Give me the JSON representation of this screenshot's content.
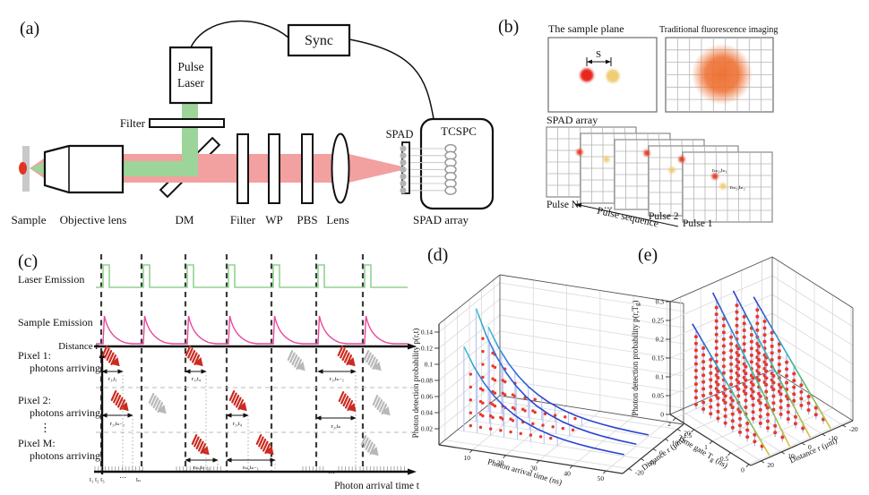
{
  "colors": {
    "excitation_green": "#9dd49a",
    "emission_red": "#f2a0a0",
    "sample_spot_red": "#e23324",
    "dot_red": "#e23c28",
    "dot_yellow": "#f0cc74",
    "blob_orange": "#ed6c2c",
    "laser_trace_green": "#8fd48f",
    "emission_trace_pink": "#e8489c",
    "photon_red": "#cb2b20",
    "photon_gray": "#b8b8b8"
  },
  "panel_a": {
    "label": "(a)",
    "sync": "Sync",
    "pulse_laser_line1": "Pulse",
    "pulse_laser_line2": "Laser",
    "filter_top": "Filter",
    "sample": "Sample",
    "objective_lens": "Objective lens",
    "dm": "DM",
    "filter": "Filter",
    "wp": "WP",
    "pbs": "PBS",
    "lens": "Lens",
    "spad": "SPAD",
    "tcspc": "TCSPC",
    "spad_array": "SPAD array"
  },
  "panel_b": {
    "label": "(b)",
    "sample_plane_title": "The sample plane",
    "traditional_title": "Traditional fluorescence imaging",
    "separation": "S",
    "spad_array": "SPAD array",
    "pulse_n": "Pulse N",
    "ellipsis": "...",
    "pulse_2": "Pulse 2",
    "pulse_1": "Pulse 1",
    "pulse_sequence": "Pulse sequence",
    "photon1_label": "rₘ₁,tₙ₁",
    "photon2_label": "rₘ₂,tₙ₂"
  },
  "panel_c": {
    "label": "(c)",
    "row_laser": "Laser Emission",
    "row_sample": "Sample Emission",
    "axis_distance": "Distance r",
    "pixel1": "Pixel 1:",
    "pixel2": "Pixel 2:",
    "pixelM": "Pixel M:",
    "arriving1": "photons arriving",
    "arriving2": "photons arriving",
    "arrivingM": "photons arriving",
    "vdots": "⋮",
    "axis_time": "Photon arrival time t",
    "t_ticks": "t₁ t₂ t₃",
    "t_dots": "⋯",
    "t_n": "tₙ",
    "comb_dots": "⋯",
    "arrows": {
      "a1": "r₁,t₁",
      "a2": "r₁,t₄",
      "a3": "r₁,tₙ₋₁",
      "b1": "r₂,tₙ₋₂",
      "b2": "r₂,t₄",
      "b3": "r₂,tₙ",
      "m1": "rₘ,tₙ₋₃",
      "m2": "rₘ,tₙ₋₁"
    }
  },
  "panel_d": {
    "label": "(d)"
  },
  "panel_e": {
    "label": "(e)",
    "zlabel_pre": "Photon detection probability p(r,T",
    "zlabel_sub": "g",
    "zlabel_post": ")",
    "xlabel_pre": "Time gate T",
    "xlabel_sub": "g",
    "xlabel_post": " (ns)"
  },
  "chart_data": [
    {
      "id": "panel_d",
      "type": "line",
      "projection": "3d",
      "title": "",
      "zlabel": "Photon detection probability p(r,t)",
      "xlabel": "Photon arrival time (ns)",
      "ylabel": "Distance r (μm)",
      "xticks": [
        10,
        20,
        30,
        40,
        50
      ],
      "yticks": [
        -20,
        -10,
        0,
        10,
        20
      ],
      "zticks": [
        0.02,
        0.04,
        0.06,
        0.08,
        0.1,
        0.12,
        0.14
      ],
      "xlim": [
        0,
        55
      ],
      "ylim": [
        -25,
        25
      ],
      "zlim": [
        0,
        0.15
      ],
      "grid": true,
      "t": [
        2,
        5,
        8,
        11,
        14,
        17,
        20,
        24,
        28,
        32,
        36,
        40,
        45,
        50
      ],
      "series": [
        {
          "r": 10,
          "peak": 0.105,
          "tau": 12,
          "t0": 2,
          "p": [
            0.105,
            0.0818,
            0.0637,
            0.0496,
            0.0386,
            0.0301,
            0.0234,
            0.0168,
            0.012,
            0.0086,
            0.0062,
            0.0044,
            0.0029,
            0.0019
          ]
        },
        {
          "r": 0,
          "peak": 0.14,
          "tau": 12,
          "t0": 2,
          "p": [
            0.14,
            0.109,
            0.0849,
            0.0661,
            0.0515,
            0.0401,
            0.0312,
            0.0224,
            0.016,
            0.0115,
            0.0082,
            0.0059,
            0.0039,
            0.0026
          ]
        },
        {
          "r": -10,
          "peak": 0.105,
          "tau": 12,
          "t0": 2,
          "p": [
            0.105,
            0.0818,
            0.0637,
            0.0496,
            0.0386,
            0.0301,
            0.0234,
            0.0168,
            0.012,
            0.0086,
            0.0062,
            0.0044,
            0.0029,
            0.0019
          ]
        }
      ],
      "stem_x": [
        2,
        6,
        10,
        14,
        18,
        22,
        26,
        30
      ],
      "dot_x": [
        4,
        7,
        10,
        13,
        16,
        19,
        22,
        25,
        28,
        31,
        34
      ],
      "colors": {
        "stem": "#b9c3f0",
        "dot": "#e8392b",
        "grad": [
          [
            0,
            "#45c8c9"
          ],
          [
            0.18,
            "#2f7bd9"
          ],
          [
            0.45,
            "#2a44d2"
          ],
          [
            1,
            "#2a44d2"
          ]
        ]
      }
    },
    {
      "id": "panel_e",
      "type": "line",
      "projection": "3d",
      "title": "",
      "zlabel": "Photon detection probability p(r,Tg)",
      "xlabel": "Time gate Tg (ns)",
      "ylabel": "Distance r (μm)",
      "xticks": [
        2,
        1.5,
        1,
        0.5,
        0
      ],
      "yticks": [
        20,
        10,
        0,
        -10,
        -20
      ],
      "zticks": [
        0,
        0.05,
        0.1,
        0.15,
        0.2,
        0.25,
        0.3
      ],
      "xlim": [
        0,
        2.2
      ],
      "ylim": [
        -25,
        25
      ],
      "zlim": [
        0,
        0.3
      ],
      "grid": true,
      "series": [
        {
          "r": -15,
          "slope": 0.105,
          "Tg": [
            0,
            2.1
          ],
          "p": [
            0,
            0.2205
          ]
        },
        {
          "r": -5,
          "slope": 0.124,
          "Tg": [
            0,
            2.1
          ],
          "p": [
            0,
            0.2604
          ]
        },
        {
          "r": 5,
          "slope": 0.133,
          "Tg": [
            0,
            2.1
          ],
          "p": [
            0,
            0.2793
          ]
        },
        {
          "r": 15,
          "slope": 0.105,
          "Tg": [
            0,
            2.1
          ],
          "p": [
            0,
            0.2205
          ]
        }
      ],
      "stem_x": [
        0.2,
        0.4,
        0.6,
        0.8,
        1,
        1.2,
        1.4,
        1.6,
        1.8,
        2
      ],
      "dot_x": [
        0.2,
        0.4,
        0.6,
        0.8,
        1,
        1.2,
        1.4,
        1.6,
        1.8,
        2
      ],
      "colors": {
        "stem": "#aab6ef",
        "dot": "#e8392b",
        "grad": [
          [
            0,
            "#e2bf3a"
          ],
          [
            0.35,
            "#57b96a"
          ],
          [
            0.6,
            "#35aec8"
          ],
          [
            1,
            "#2f3ed0"
          ]
        ]
      }
    }
  ]
}
